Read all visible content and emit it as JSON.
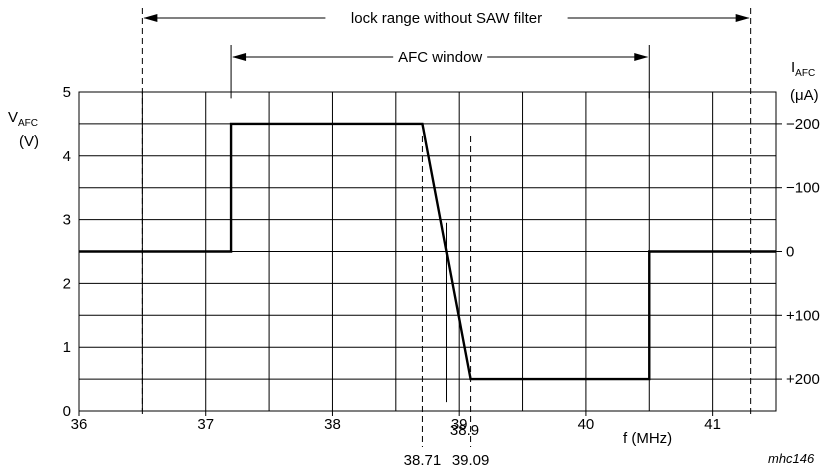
{
  "chart_data": {
    "type": "line",
    "title": "",
    "xlabel": "f (MHz)",
    "ylabel_left": {
      "main": "V",
      "sub": "AFC",
      "unit": "(V)"
    },
    "ylabel_right": {
      "main": "I",
      "sub": "AFC",
      "unit": "(μA)"
    },
    "xlim": [
      36,
      41.5
    ],
    "ylim": [
      0,
      5
    ],
    "grid": true,
    "x_major_ticks": [
      36,
      37,
      38,
      39,
      40,
      41
    ],
    "x_minor_ticks": [
      36.5,
      37.5,
      38.5,
      39.5,
      40.5,
      41.5
    ],
    "y_ticks": [
      0,
      1,
      2,
      3,
      4,
      5
    ],
    "y_minor_ticks": [
      0.5,
      1.5,
      2.5,
      3.5,
      4.5
    ],
    "right_ticks": [
      {
        "label": "−200",
        "y": 4.5
      },
      {
        "label": "−100",
        "y": 3.5
      },
      {
        "label": "0",
        "y": 2.5
      },
      {
        "label": "+100",
        "y": 1.5
      },
      {
        "label": "+200",
        "y": 0.5
      }
    ],
    "series": [
      {
        "x": [
          36,
          37.2,
          37.2,
          38.71,
          39.09,
          40.5,
          40.5,
          41.5
        ],
        "y": [
          2.5,
          2.5,
          4.5,
          4.5,
          0.5,
          0.5,
          2.5,
          2.5
        ]
      }
    ],
    "markers": [
      {
        "x": 38.71,
        "label": "38.71",
        "position": "bottom"
      },
      {
        "x": 38.9,
        "label": "38.9",
        "position": "inside"
      },
      {
        "x": 39.09,
        "label": "39.09",
        "position": "bottom"
      }
    ],
    "ranges": [
      {
        "label": "lock range without SAW filter",
        "x_from": 36.5,
        "x_to": 41.3,
        "line": "dashed"
      },
      {
        "label": "AFC window",
        "x_from": 37.2,
        "x_to": 40.5,
        "line": "solid"
      }
    ],
    "annotation": "mhc146"
  }
}
